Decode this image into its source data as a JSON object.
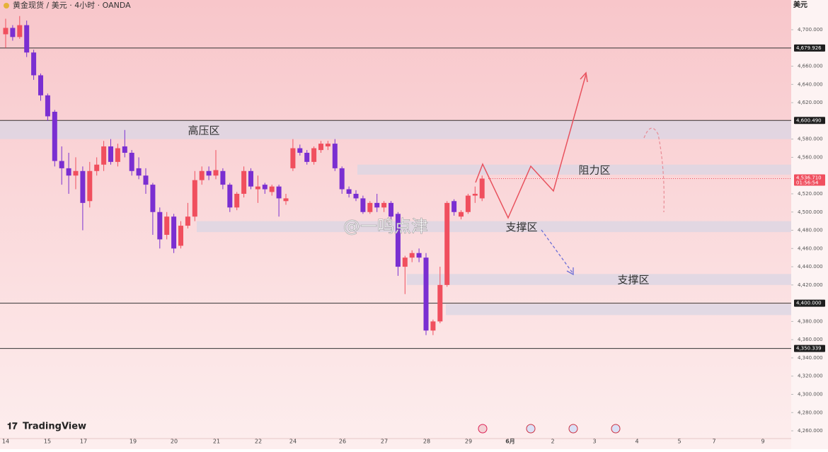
{
  "chart_data": {
    "type": "candlestick",
    "title": "黄金现货 / 美元 · 4小时 · OANDA",
    "currency": "美元",
    "brand": "TradingView",
    "watermark": "@一鸣点津",
    "categories": [
      "14",
      "15",
      "17",
      "19",
      "20",
      "21",
      "22",
      "24",
      "26",
      "27",
      "28",
      "29",
      "6月",
      "2",
      "3",
      "4",
      "5",
      "7",
      "9"
    ],
    "open": [
      4695,
      4702,
      4692,
      4705,
      4675,
      4650,
      4628,
      4610,
      4556,
      4548,
      4540,
      4545,
      4512,
      4545,
      4552,
      4572,
      4555,
      4572,
      4565,
      4548,
      4540,
      4530,
      4500,
      4475,
      4495,
      4463,
      4485,
      4495,
      4535,
      4545,
      4540,
      4545,
      4530,
      4505,
      4520,
      4545,
      4525,
      4530,
      4522,
      4528,
      4512,
      4548,
      4570,
      4565,
      4555,
      4568,
      4572,
      4575,
      4548,
      4525,
      4520,
      4515,
      4500,
      4510,
      4505,
      4510,
      4498,
      4440,
      4450,
      4455,
      4450,
      4370,
      4380,
      4420,
      4512,
      4495,
      4500,
      4518,
      4515
    ],
    "high": [
      4712,
      4705,
      4715,
      4710,
      4678,
      4652,
      4630,
      4612,
      4572,
      4565,
      4560,
      4550,
      4555,
      4560,
      4578,
      4580,
      4575,
      4590,
      4568,
      4560,
      4548,
      4532,
      4505,
      4500,
      4498,
      4490,
      4510,
      4545,
      4550,
      4550,
      4568,
      4548,
      4532,
      4522,
      4550,
      4548,
      4540,
      4532,
      4530,
      4530,
      4520,
      4580,
      4574,
      4568,
      4572,
      4578,
      4578,
      4580,
      4550,
      4528,
      4524,
      4518,
      4512,
      4520,
      4512,
      4512,
      4500,
      4452,
      4458,
      4460,
      4455,
      4382,
      4440,
      4512,
      4514,
      4502,
      4520,
      4528,
      4540
    ],
    "low": [
      4680,
      4688,
      4690,
      4670,
      4645,
      4622,
      4600,
      4550,
      4530,
      4520,
      4525,
      4480,
      4505,
      4540,
      4545,
      4552,
      4550,
      4560,
      4540,
      4536,
      4520,
      4475,
      4460,
      4470,
      4455,
      4460,
      4482,
      4490,
      4530,
      4535,
      4536,
      4525,
      4500,
      4502,
      4516,
      4525,
      4510,
      4520,
      4518,
      4495,
      4508,
      4545,
      4562,
      4552,
      4552,
      4565,
      4568,
      4545,
      4520,
      4516,
      4512,
      4498,
      4498,
      4500,
      4500,
      4492,
      4430,
      4410,
      4445,
      4445,
      4365,
      4365,
      4378,
      4418,
      4496,
      4492,
      4498,
      4510,
      4512
    ],
    "close": [
      4702,
      4692,
      4705,
      4675,
      4650,
      4628,
      4605,
      4556,
      4548,
      4540,
      4545,
      4510,
      4545,
      4552,
      4572,
      4555,
      4570,
      4565,
      4545,
      4540,
      4530,
      4500,
      4470,
      4495,
      4460,
      4485,
      4495,
      4535,
      4545,
      4540,
      4546,
      4530,
      4505,
      4520,
      4545,
      4528,
      4528,
      4525,
      4528,
      4515,
      4515,
      4570,
      4565,
      4555,
      4570,
      4575,
      4575,
      4548,
      4525,
      4520,
      4515,
      4500,
      4510,
      4505,
      4510,
      4495,
      4440,
      4450,
      4455,
      4450,
      4370,
      4380,
      4420,
      4510,
      4500,
      4500,
      4518,
      4520,
      4536.71
    ],
    "up_color": "#f04f5e",
    "down_color": "#7a2fd1",
    "ylim": [
      4251.5,
      4732.6
    ],
    "yticks": [
      {
        "value": 4260,
        "label": "4,260.000"
      },
      {
        "value": 4280,
        "label": "4,280.000"
      },
      {
        "value": 4300,
        "label": "4,300.000"
      },
      {
        "value": 4320,
        "label": "4,320.000"
      },
      {
        "value": 4340,
        "label": "4,340.000"
      },
      {
        "value": 4360,
        "label": "4,360.000"
      },
      {
        "value": 4380,
        "label": "4,380.000"
      },
      {
        "value": 4420,
        "label": "4,420.000"
      },
      {
        "value": 4440,
        "label": "4,440.000"
      },
      {
        "value": 4460,
        "label": "4,460.000"
      },
      {
        "value": 4480,
        "label": "4,480.000"
      },
      {
        "value": 4500,
        "label": "4,500.000"
      },
      {
        "value": 4520,
        "label": "4,520.000"
      },
      {
        "value": 4560,
        "label": "4,560.000"
      },
      {
        "value": 4580,
        "label": "4,580.000"
      },
      {
        "value": 4620,
        "label": "4,620.000"
      },
      {
        "value": 4640,
        "label": "4,640.000"
      },
      {
        "value": 4660,
        "label": "4,660.000"
      },
      {
        "value": 4700,
        "label": "4,700.000"
      }
    ],
    "levels": [
      {
        "value": 4679.926,
        "label": "4,679.926"
      },
      {
        "value": 4600.49,
        "label": "4,600.490"
      },
      {
        "value": 4400,
        "label": "4,400.000"
      },
      {
        "value": 4350.339,
        "label": "4,350.339"
      }
    ],
    "last_price": {
      "value": 4536.71,
      "label": "4,536.710",
      "countdown": "01:56:54"
    },
    "zones": [
      {
        "label": "高压区",
        "from": 4580,
        "to": 4600
      },
      {
        "label": "阻力区",
        "from": 4541,
        "to": 4552
      },
      {
        "label": "支撑区",
        "from": 4478,
        "to": 4490
      },
      {
        "label": "支撑区",
        "from": 4420,
        "to": 4432
      },
      {
        "from": 4387,
        "to": 4399
      }
    ]
  }
}
